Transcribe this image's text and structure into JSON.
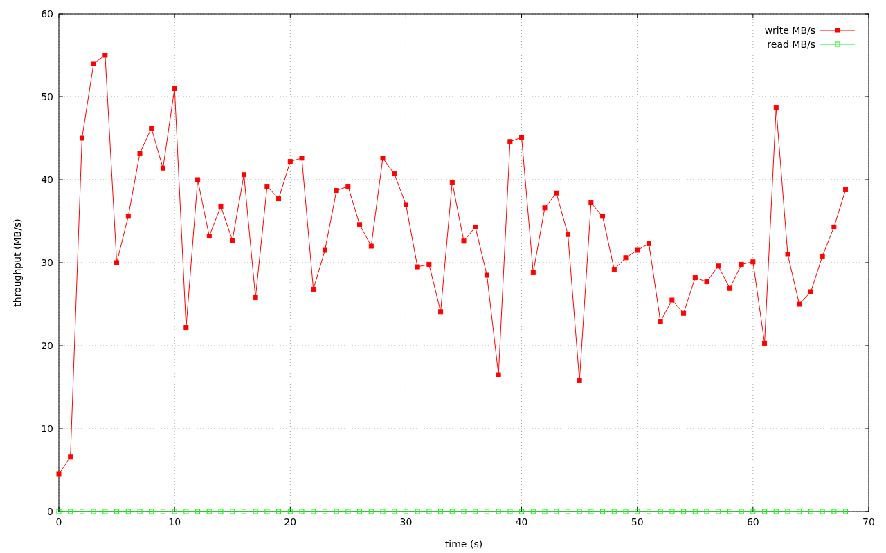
{
  "chart_data": {
    "type": "line",
    "xlabel": "time (s)",
    "ylabel": "throughput (MB/s)",
    "x": [
      0,
      1,
      2,
      3,
      4,
      5,
      6,
      7,
      8,
      9,
      10,
      11,
      12,
      13,
      14,
      15,
      16,
      17,
      18,
      19,
      20,
      21,
      22,
      23,
      24,
      25,
      26,
      27,
      28,
      29,
      30,
      31,
      32,
      33,
      34,
      35,
      36,
      37,
      38,
      39,
      40,
      41,
      42,
      43,
      44,
      45,
      46,
      47,
      48,
      49,
      50,
      51,
      52,
      53,
      54,
      55,
      56,
      57,
      58,
      59,
      60,
      61,
      62,
      63,
      64,
      65,
      66,
      67,
      68
    ],
    "series": [
      {
        "name": "write MB/s",
        "color": "#ff0000",
        "values": [
          4.5,
          6.6,
          45,
          54,
          55,
          30,
          35.6,
          43.2,
          46.2,
          41.4,
          51,
          22.2,
          40,
          33.2,
          36.8,
          32.7,
          40.6,
          25.8,
          39.2,
          37.7,
          42.2,
          42.6,
          26.8,
          31.5,
          38.7,
          39.2,
          34.6,
          32,
          42.6,
          40.7,
          37,
          29.5,
          29.8,
          24.1,
          39.7,
          32.6,
          34.3,
          28.5,
          16.5,
          44.6,
          45.1,
          28.8,
          36.6,
          38.4,
          33.4,
          15.8,
          37.2,
          35.6,
          29.2,
          30.6,
          31.5,
          32.3,
          22.9,
          25.5,
          23.9,
          28.2,
          27.7,
          29.6,
          26.9,
          29.8,
          30.1,
          20.3,
          48.7,
          31,
          25,
          26.5,
          30.8,
          34.3,
          38.8
        ]
      },
      {
        "name": "read MB/s",
        "color": "#00ff00",
        "values": [
          0,
          0,
          0,
          0,
          0,
          0,
          0,
          0,
          0,
          0,
          0,
          0,
          0,
          0,
          0,
          0,
          0,
          0,
          0,
          0,
          0,
          0,
          0,
          0,
          0,
          0,
          0,
          0,
          0,
          0,
          0,
          0,
          0,
          0,
          0,
          0,
          0,
          0,
          0,
          0,
          0,
          0,
          0,
          0,
          0,
          0,
          0,
          0,
          0,
          0,
          0,
          0,
          0,
          0,
          0,
          0,
          0,
          0,
          0,
          0,
          0,
          0,
          0,
          0,
          0,
          0,
          0,
          0,
          0
        ]
      }
    ],
    "xlim": [
      0,
      70
    ],
    "xticks": [
      0,
      10,
      20,
      30,
      40,
      50,
      60,
      70
    ],
    "ylim": [
      0,
      60
    ],
    "yticks": [
      0,
      10,
      20,
      30,
      40,
      50,
      60
    ],
    "grid": true,
    "legend": "top right",
    "marker": "square",
    "line_style": "solid"
  }
}
